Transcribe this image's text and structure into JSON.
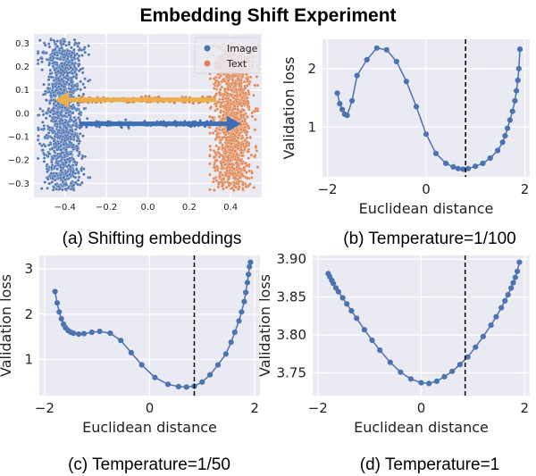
{
  "figure": {
    "title": "Embedding Shift Experiment"
  },
  "colors": {
    "image": "#4c72b0",
    "text": "#dd8452",
    "arrow_left": "#e9b04a",
    "arrow_right": "#3d6db3",
    "panel_bg": "#eaeaf2",
    "line": "#4c72b0",
    "dashed": "#000000"
  },
  "chart_data": [
    {
      "id": "a",
      "type": "scatter",
      "caption": "(a) Shifting embeddings",
      "xlim": [
        -0.55,
        0.55
      ],
      "ylim": [
        -0.36,
        0.34
      ],
      "xticks": [
        -0.4,
        -0.2,
        0.0,
        0.2,
        0.4
      ],
      "xtick_labels": [
        "−0.4",
        "−0.2",
        "0.0",
        "0.2",
        "0.4"
      ],
      "yticks": [
        0.3,
        0.2,
        0.1,
        0.0,
        -0.1,
        -0.2,
        -0.3
      ],
      "ytick_labels": [
        "0.3",
        "0.2",
        "0.1",
        "0.0",
        "−0.1",
        "−0.2",
        "−0.3"
      ],
      "legend_position": "top-right",
      "series": [
        {
          "name": "Image",
          "center_x": -0.41,
          "x_range": [
            -0.53,
            -0.28
          ],
          "y_range": [
            -0.33,
            0.32
          ],
          "points": 1400
        },
        {
          "name": "Text",
          "center_x": 0.41,
          "x_range": [
            0.3,
            0.53
          ],
          "y_range": [
            -0.33,
            0.3
          ],
          "points": 1400
        }
      ],
      "arrows": [
        {
          "from": [
            0.33,
            0.058
          ],
          "to": [
            -0.45,
            0.058
          ],
          "direction": "left"
        },
        {
          "from": [
            -0.33,
            -0.045
          ],
          "to": [
            0.45,
            -0.045
          ],
          "direction": "right"
        }
      ]
    },
    {
      "id": "b",
      "type": "line",
      "caption": "(b) Temperature=1/100",
      "xlabel": "Euclidean distance",
      "ylabel": "Validation loss",
      "xlim": [
        -2.1,
        2.1
      ],
      "ylim": [
        0.15,
        2.5
      ],
      "xticks": [
        -2,
        0,
        2
      ],
      "xtick_labels": [
        "−2",
        "0",
        "2"
      ],
      "yticks": [
        1,
        2
      ],
      "ytick_labels": [
        "1",
        "2"
      ],
      "vline": 0.8,
      "x": [
        -1.8,
        -1.75,
        -1.7,
        -1.65,
        -1.6,
        -1.5,
        -1.4,
        -1.2,
        -1.0,
        -0.8,
        -0.6,
        -0.4,
        -0.2,
        0.0,
        0.2,
        0.4,
        0.55,
        0.65,
        0.75,
        0.85,
        1.0,
        1.15,
        1.3,
        1.45,
        1.55,
        1.6,
        1.65,
        1.7,
        1.75,
        1.8,
        1.83,
        1.86,
        1.88,
        1.9
      ],
      "y": [
        1.58,
        1.4,
        1.3,
        1.22,
        1.2,
        1.45,
        1.88,
        2.15,
        2.35,
        2.32,
        2.12,
        1.78,
        1.35,
        0.88,
        0.55,
        0.38,
        0.32,
        0.29,
        0.28,
        0.29,
        0.33,
        0.38,
        0.47,
        0.6,
        0.74,
        0.85,
        0.98,
        1.12,
        1.27,
        1.45,
        1.62,
        1.8,
        2.0,
        2.33
      ]
    },
    {
      "id": "c",
      "type": "line",
      "caption": "(c) Temperature=1/50",
      "xlabel": "Euclidean distance",
      "ylabel": "Validation loss",
      "xlim": [
        -2.1,
        2.1
      ],
      "ylim": [
        0.2,
        3.3
      ],
      "xticks": [
        -2,
        0,
        2
      ],
      "xtick_labels": [
        "−2",
        "0",
        "2"
      ],
      "yticks": [
        1,
        2,
        3
      ],
      "ytick_labels": [
        "1",
        "2",
        "3"
      ],
      "vline": 0.85,
      "x": [
        -1.8,
        -1.76,
        -1.72,
        -1.68,
        -1.64,
        -1.6,
        -1.55,
        -1.5,
        -1.45,
        -1.35,
        -1.25,
        -1.1,
        -0.95,
        -0.75,
        -0.55,
        -0.35,
        -0.15,
        0.1,
        0.35,
        0.55,
        0.7,
        0.85,
        1.0,
        1.15,
        1.3,
        1.45,
        1.55,
        1.62,
        1.7,
        1.75,
        1.8,
        1.83,
        1.86,
        1.88,
        1.9,
        1.92
      ],
      "y": [
        2.5,
        2.25,
        2.05,
        1.9,
        1.78,
        1.7,
        1.64,
        1.6,
        1.58,
        1.56,
        1.57,
        1.6,
        1.62,
        1.58,
        1.42,
        1.15,
        0.88,
        0.6,
        0.45,
        0.4,
        0.39,
        0.41,
        0.5,
        0.66,
        0.88,
        1.12,
        1.38,
        1.6,
        1.85,
        2.05,
        2.28,
        2.48,
        2.7,
        2.88,
        3.05,
        3.15
      ]
    },
    {
      "id": "d",
      "type": "line",
      "caption": "(d) Temperature=1",
      "xlabel": "Euclidean distance",
      "ylabel": "Validation loss",
      "xlim": [
        -2.1,
        2.1
      ],
      "ylim": [
        3.72,
        3.905
      ],
      "xticks": [
        -2,
        0,
        2
      ],
      "xtick_labels": [
        "−2",
        "0",
        "2"
      ],
      "yticks": [
        3.75,
        3.8,
        3.85,
        3.9
      ],
      "ytick_labels": [
        "3.75",
        "3.80",
        "3.85",
        "3.90"
      ],
      "vline": 0.85,
      "x": [
        -1.8,
        -1.77,
        -1.73,
        -1.7,
        -1.65,
        -1.6,
        -1.52,
        -1.44,
        -1.35,
        -1.25,
        -1.1,
        -0.95,
        -0.8,
        -0.6,
        -0.4,
        -0.2,
        0.0,
        0.15,
        0.3,
        0.45,
        0.6,
        0.75,
        0.9,
        1.05,
        1.2,
        1.35,
        1.45,
        1.55,
        1.62,
        1.68,
        1.74,
        1.78,
        1.82,
        1.86,
        1.9
      ],
      "y": [
        3.881,
        3.877,
        3.872,
        3.868,
        3.862,
        3.857,
        3.849,
        3.841,
        3.832,
        3.822,
        3.807,
        3.793,
        3.78,
        3.764,
        3.751,
        3.742,
        3.737,
        3.736,
        3.739,
        3.745,
        3.752,
        3.761,
        3.771,
        3.784,
        3.798,
        3.813,
        3.824,
        3.836,
        3.845,
        3.853,
        3.862,
        3.869,
        3.876,
        3.884,
        3.896
      ]
    }
  ]
}
